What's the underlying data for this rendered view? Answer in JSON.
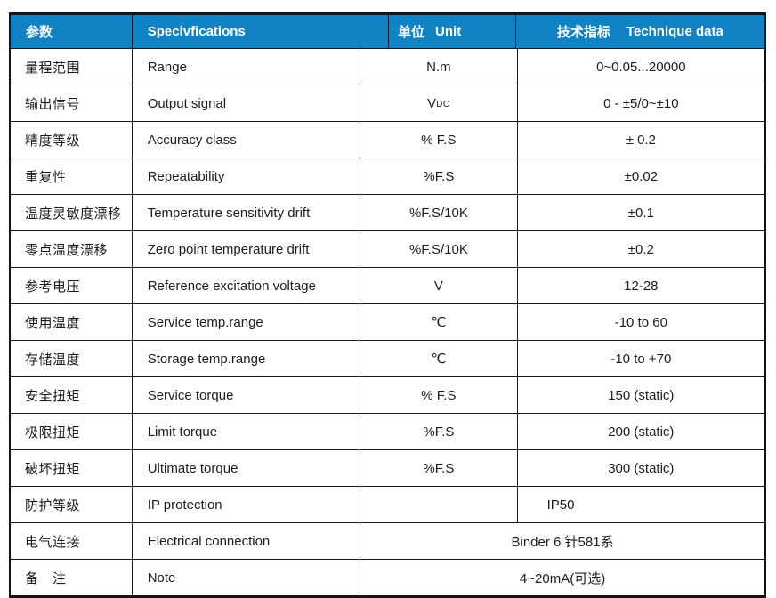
{
  "colors": {
    "header_bg": "#1183C5",
    "header_text": "#FFFFFF",
    "border": "#1A1A1A",
    "body_text": "#1C1C1C"
  },
  "header": {
    "col1_zh": "参数",
    "col2_en": "Specivfications",
    "col3_zh": "单位",
    "col3_en": "Unit",
    "col4_zh": "技术指标",
    "col4_en": "Technique data"
  },
  "rows": [
    {
      "zh": "量程范围",
      "en": "Range",
      "unit": "N.m",
      "value": "0~0.05...20000"
    },
    {
      "zh": "输出信号",
      "en": "Output signal",
      "unit": "V",
      "unit_sub": "DC",
      "value": "0 - ±5/0~±10"
    },
    {
      "zh": "精度等级",
      "en": "Accuracy class",
      "unit": "% F.S",
      "value": "± 0.2"
    },
    {
      "zh": "重复性",
      "en": "Repeatability",
      "unit": "%F.S",
      "value": "±0.02"
    },
    {
      "zh": "温度灵敏度漂移",
      "en": "Temperature sensitivity drift",
      "unit": "%F.S/10K",
      "value": "±0.1"
    },
    {
      "zh": "零点温度漂移",
      "en": "Zero point temperature drift",
      "unit": "%F.S/10K",
      "value": "±0.2"
    },
    {
      "zh": "参考电压",
      "en": "Reference excitation voltage",
      "unit": "V",
      "value": "12-28"
    },
    {
      "zh": "使用温度",
      "en": "Service temp.range",
      "unit": "℃",
      "value": "-10 to 60"
    },
    {
      "zh": "存储温度",
      "en": "Storage temp.range",
      "unit": "℃",
      "value": "-10 to +70"
    },
    {
      "zh": "安全扭矩",
      "en": "Service torque",
      "unit": "% F.S",
      "value": "150 (static)"
    },
    {
      "zh": "极限扭矩",
      "en": "Limit torque",
      "unit": "%F.S",
      "value": "200 (static)"
    },
    {
      "zh": "破坏扭矩",
      "en": "Ultimate torque",
      "unit": "%F.S",
      "value": "300 (static)"
    },
    {
      "zh": "防护等级",
      "en": "IP protection",
      "unit": "",
      "value": "IP50"
    },
    {
      "zh": "电气连接",
      "en": "Electrical connection",
      "merged_value": "Binder 6 针581系"
    },
    {
      "zh": "备　注",
      "en": "Note",
      "merged_value": "4~20mA(可选)"
    }
  ]
}
